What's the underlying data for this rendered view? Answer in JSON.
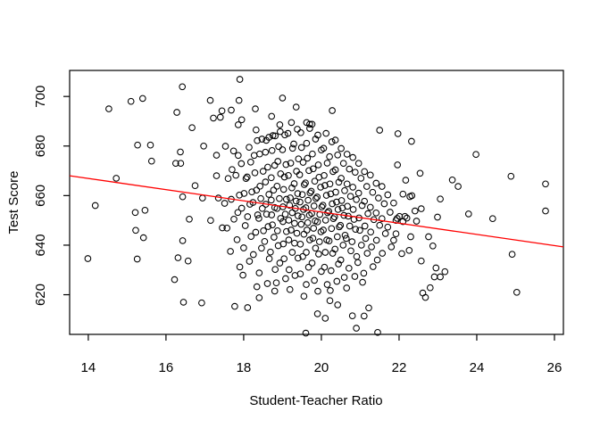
{
  "chart_data": {
    "type": "scatter",
    "title": "",
    "xlabel": "Student-Teacher Ratio",
    "ylabel": "Test Score",
    "xticks": [
      14,
      16,
      18,
      20,
      22,
      24,
      26
    ],
    "yticks": [
      620,
      640,
      660,
      680,
      700
    ],
    "xlim": [
      13.52,
      26.23
    ],
    "ylim": [
      604.0,
      710.5
    ],
    "grid": false,
    "marker": {
      "shape": "open-circle",
      "color": "#000000"
    },
    "regression_line": {
      "color": "#ff0000",
      "x1": 13.52,
      "y1": 668.0,
      "x2": 26.23,
      "y2": 639.3,
      "slope": -2.28,
      "intercept": 698.9
    },
    "points": [
      [
        13.99,
        634.6
      ],
      [
        14.18,
        656.0
      ],
      [
        14.53,
        695.0
      ],
      [
        14.72,
        667.0
      ],
      [
        15.1,
        698.0
      ],
      [
        15.4,
        699.2
      ],
      [
        15.21,
        653.2
      ],
      [
        15.46,
        654.1
      ],
      [
        15.22,
        646.0
      ],
      [
        15.42,
        643.0
      ],
      [
        15.26,
        634.4
      ],
      [
        15.27,
        680.4
      ],
      [
        15.6,
        680.4
      ],
      [
        15.63,
        673.9
      ],
      [
        16.42,
        703.9
      ],
      [
        16.28,
        693.6
      ],
      [
        16.25,
        673.0
      ],
      [
        16.38,
        673.0
      ],
      [
        16.37,
        677.6
      ],
      [
        16.97,
        680.0
      ],
      [
        16.67,
        687.4
      ],
      [
        16.43,
        659.5
      ],
      [
        16.94,
        659.0
      ],
      [
        16.31,
        634.9
      ],
      [
        16.57,
        633.6
      ],
      [
        16.22,
        626.1
      ],
      [
        16.43,
        641.8
      ],
      [
        16.45,
        617.0
      ],
      [
        16.92,
        616.7
      ],
      [
        17.14,
        698.4
      ],
      [
        17.3,
        676.3
      ],
      [
        17.22,
        691.3
      ],
      [
        17.4,
        691.6
      ],
      [
        17.44,
        694.2
      ],
      [
        16.75,
        664.0
      ],
      [
        16.6,
        650.5
      ],
      [
        17.15,
        650.0
      ],
      [
        17.35,
        659.0
      ],
      [
        17.45,
        647.0
      ],
      [
        17.3,
        668.0
      ],
      [
        17.68,
        694.5
      ],
      [
        17.9,
        706.9
      ],
      [
        17.88,
        698.4
      ],
      [
        17.95,
        690.6
      ],
      [
        17.86,
        688.6
      ],
      [
        18.3,
        695.0
      ],
      [
        18.93,
        688.6
      ],
      [
        18.32,
        686.5
      ],
      [
        18.81,
        684.1
      ],
      [
        18.58,
        682.3
      ],
      [
        18.72,
        692.0
      ],
      [
        19.0,
        699.4
      ],
      [
        19.35,
        695.7
      ],
      [
        19.7,
        688.8
      ],
      [
        20.28,
        694.3
      ],
      [
        19.62,
        689.5
      ],
      [
        21.5,
        686.4
      ],
      [
        21.97,
        685.0
      ],
      [
        19.23,
        689.5
      ],
      [
        17.77,
        615.3
      ],
      [
        18.1,
        614.8
      ],
      [
        18.4,
        618.8
      ],
      [
        18.8,
        621.5
      ],
      [
        19.6,
        604.5
      ],
      [
        21.45,
        604.8
      ],
      [
        20.9,
        606.5
      ],
      [
        20.1,
        610.5
      ],
      [
        19.9,
        612.3
      ],
      [
        20.42,
        615.9
      ],
      [
        20.22,
        617.6
      ],
      [
        20.8,
        611.5
      ],
      [
        21.1,
        611.4
      ],
      [
        21.22,
        614.7
      ],
      [
        22.32,
        681.9
      ],
      [
        23.98,
        676.6
      ],
      [
        21.96,
        672.4
      ],
      [
        22.17,
        666.2
      ],
      [
        22.54,
        669.0
      ],
      [
        23.37,
        666.3
      ],
      [
        23.52,
        663.7
      ],
      [
        24.88,
        667.8
      ],
      [
        25.77,
        664.7
      ],
      [
        25.77,
        653.8
      ],
      [
        22.28,
        659.6
      ],
      [
        22.33,
        660.0
      ],
      [
        23.06,
        658.6
      ],
      [
        22.41,
        653.8
      ],
      [
        22.57,
        654.7
      ],
      [
        22.99,
        651.3
      ],
      [
        23.79,
        652.6
      ],
      [
        24.41,
        650.7
      ],
      [
        22.1,
        649.5
      ],
      [
        22.2,
        650.9
      ],
      [
        22.45,
        649.7
      ],
      [
        21.95,
        650.8
      ],
      [
        22.15,
        651.6
      ],
      [
        21.92,
        644.6
      ],
      [
        22.3,
        643.4
      ],
      [
        22.76,
        643.4
      ],
      [
        22.87,
        639.7
      ],
      [
        22.26,
        637.9
      ],
      [
        24.91,
        636.3
      ],
      [
        22.57,
        633.6
      ],
      [
        23.18,
        629.3
      ],
      [
        22.95,
        630.8
      ],
      [
        22.91,
        627.2
      ],
      [
        23.06,
        627.2
      ],
      [
        22.61,
        620.7
      ],
      [
        22.8,
        622.8
      ],
      [
        22.68,
        618.9
      ],
      [
        25.03,
        621.0
      ],
      [
        17.57,
        646.9
      ],
      [
        17.51,
        656.9
      ],
      [
        17.6,
        666.9
      ],
      [
        17.53,
        679.9
      ],
      [
        17.66,
        637.5
      ],
      [
        17.75,
        650.5
      ],
      [
        17.68,
        658.5
      ],
      [
        17.7,
        670.5
      ],
      [
        17.74,
        678.0
      ],
      [
        17.9,
        631.2
      ],
      [
        17.83,
        642.2
      ],
      [
        17.85,
        653.2
      ],
      [
        17.89,
        660.2
      ],
      [
        17.8,
        668.2
      ],
      [
        17.86,
        676.2
      ],
      [
        17.98,
        627.9
      ],
      [
        18.0,
        638.9
      ],
      [
        18.04,
        647.9
      ],
      [
        17.95,
        654.9
      ],
      [
        18.01,
        660.9
      ],
      [
        18.06,
        666.9
      ],
      [
        17.94,
        672.9
      ],
      [
        18.15,
        633.5
      ],
      [
        18.19,
        643.5
      ],
      [
        18.1,
        651.5
      ],
      [
        18.16,
        656.5
      ],
      [
        18.21,
        661.5
      ],
      [
        18.09,
        667.5
      ],
      [
        18.18,
        673.5
      ],
      [
        18.14,
        679.5
      ],
      [
        18.34,
        623.2
      ],
      [
        18.25,
        636.2
      ],
      [
        18.31,
        645.2
      ],
      [
        18.36,
        652.2
      ],
      [
        18.24,
        657.2
      ],
      [
        18.33,
        662.2
      ],
      [
        18.29,
        669.2
      ],
      [
        18.27,
        676.2
      ],
      [
        18.35,
        682.2
      ],
      [
        18.4,
        628.8
      ],
      [
        18.46,
        638.8
      ],
      [
        18.51,
        645.8
      ],
      [
        18.39,
        650.8
      ],
      [
        18.48,
        654.8
      ],
      [
        18.44,
        658.8
      ],
      [
        18.42,
        663.8
      ],
      [
        18.5,
        669.8
      ],
      [
        18.41,
        676.8
      ],
      [
        18.47,
        682.8
      ],
      [
        18.61,
        624.5
      ],
      [
        18.66,
        634.5
      ],
      [
        18.54,
        641.5
      ],
      [
        18.63,
        647.5
      ],
      [
        18.59,
        652.5
      ],
      [
        18.57,
        656.5
      ],
      [
        18.65,
        660.5
      ],
      [
        18.56,
        665.5
      ],
      [
        18.62,
        671.5
      ],
      [
        18.56,
        677.5
      ],
      [
        18.65,
        683.5
      ],
      [
        18.81,
        630.2
      ],
      [
        18.69,
        637.2
      ],
      [
        18.78,
        643.2
      ],
      [
        18.74,
        648.2
      ],
      [
        18.72,
        652.2
      ],
      [
        18.8,
        655.2
      ],
      [
        18.71,
        658.2
      ],
      [
        18.77,
        662.2
      ],
      [
        18.71,
        667.2
      ],
      [
        18.8,
        672.2
      ],
      [
        18.73,
        678.2
      ],
      [
        18.75,
        684.2
      ],
      [
        18.84,
        624.8
      ],
      [
        18.93,
        632.8
      ],
      [
        18.89,
        639.8
      ],
      [
        18.87,
        645.8
      ],
      [
        18.95,
        650.8
      ],
      [
        18.86,
        654.8
      ],
      [
        18.92,
        658.8
      ],
      [
        18.86,
        663.8
      ],
      [
        18.95,
        668.8
      ],
      [
        18.88,
        673.8
      ],
      [
        18.9,
        679.8
      ],
      [
        18.94,
        685.8
      ],
      [
        19.08,
        626.5
      ],
      [
        19.04,
        634.5
      ],
      [
        19.02,
        640.5
      ],
      [
        19.1,
        645.5
      ],
      [
        19.01,
        649.5
      ],
      [
        19.07,
        652.5
      ],
      [
        19.01,
        655.5
      ],
      [
        19.1,
        658.5
      ],
      [
        19.03,
        662.5
      ],
      [
        19.05,
        667.5
      ],
      [
        19.09,
        672.5
      ],
      [
        19.0,
        678.5
      ],
      [
        19.06,
        684.5
      ],
      [
        19.19,
        622.1
      ],
      [
        19.17,
        630.1
      ],
      [
        19.25,
        637.1
      ],
      [
        19.16,
        642.1
      ],
      [
        19.22,
        646.1
      ],
      [
        19.16,
        650.1
      ],
      [
        19.25,
        653.1
      ],
      [
        19.18,
        656.1
      ],
      [
        19.2,
        659.1
      ],
      [
        19.24,
        663.1
      ],
      [
        19.15,
        668.1
      ],
      [
        19.21,
        673.1
      ],
      [
        19.26,
        679.1
      ],
      [
        19.14,
        685.1
      ],
      [
        19.32,
        627.8
      ],
      [
        19.4,
        634.8
      ],
      [
        19.31,
        640.8
      ],
      [
        19.37,
        644.8
      ],
      [
        19.31,
        648.8
      ],
      [
        19.4,
        651.8
      ],
      [
        19.33,
        654.8
      ],
      [
        19.35,
        657.8
      ],
      [
        19.39,
        660.8
      ],
      [
        19.3,
        664.8
      ],
      [
        19.36,
        669.8
      ],
      [
        19.41,
        674.8
      ],
      [
        19.29,
        680.8
      ],
      [
        19.38,
        686.8
      ],
      [
        19.55,
        619.4
      ],
      [
        19.46,
        628.4
      ],
      [
        19.52,
        635.4
      ],
      [
        19.46,
        640.4
      ],
      [
        19.55,
        644.4
      ],
      [
        19.48,
        648.4
      ],
      [
        19.5,
        651.4
      ],
      [
        19.54,
        654.4
      ],
      [
        19.45,
        657.4
      ],
      [
        19.51,
        660.4
      ],
      [
        19.56,
        664.4
      ],
      [
        19.44,
        668.4
      ],
      [
        19.53,
        673.4
      ],
      [
        19.49,
        679.4
      ],
      [
        19.47,
        685.4
      ],
      [
        19.61,
        624.1
      ],
      [
        19.67,
        631.1
      ],
      [
        19.61,
        637.1
      ],
      [
        19.7,
        642.1
      ],
      [
        19.63,
        646.1
      ],
      [
        19.65,
        649.1
      ],
      [
        19.69,
        652.1
      ],
      [
        19.6,
        655.1
      ],
      [
        19.66,
        658.1
      ],
      [
        19.71,
        661.1
      ],
      [
        19.59,
        665.1
      ],
      [
        19.68,
        670.1
      ],
      [
        19.64,
        675.1
      ],
      [
        19.62,
        681.1
      ],
      [
        19.7,
        687.1
      ],
      [
        19.82,
        625.8
      ],
      [
        19.76,
        632.8
      ],
      [
        19.85,
        638.8
      ],
      [
        19.78,
        642.8
      ],
      [
        19.8,
        646.8
      ],
      [
        19.84,
        649.8
      ],
      [
        19.75,
        652.8
      ],
      [
        19.81,
        655.8
      ],
      [
        19.86,
        658.8
      ],
      [
        19.74,
        661.8
      ],
      [
        19.83,
        665.8
      ],
      [
        19.79,
        670.8
      ],
      [
        19.77,
        676.8
      ],
      [
        19.85,
        682.8
      ],
      [
        19.76,
        688.8
      ],
      [
        19.91,
        621.4
      ],
      [
        20.0,
        629.4
      ],
      [
        19.93,
        636.4
      ],
      [
        19.95,
        641.4
      ],
      [
        19.99,
        645.4
      ],
      [
        19.9,
        649.4
      ],
      [
        19.96,
        652.4
      ],
      [
        20.01,
        655.4
      ],
      [
        19.89,
        659.4
      ],
      [
        19.98,
        663.4
      ],
      [
        19.94,
        667.4
      ],
      [
        19.92,
        672.4
      ],
      [
        20.0,
        678.4
      ],
      [
        19.91,
        684.4
      ],
      [
        20.15,
        624.1
      ],
      [
        20.08,
        631.1
      ],
      [
        20.1,
        637.1
      ],
      [
        20.14,
        642.1
      ],
      [
        20.05,
        646.1
      ],
      [
        20.11,
        650.1
      ],
      [
        20.16,
        653.1
      ],
      [
        20.04,
        656.1
      ],
      [
        20.13,
        660.1
      ],
      [
        20.09,
        664.1
      ],
      [
        20.07,
        668.1
      ],
      [
        20.15,
        673.1
      ],
      [
        20.06,
        679.1
      ],
      [
        20.12,
        685.1
      ],
      [
        20.23,
        621.7
      ],
      [
        20.25,
        629.7
      ],
      [
        20.29,
        636.7
      ],
      [
        20.2,
        641.7
      ],
      [
        20.26,
        646.7
      ],
      [
        20.31,
        650.7
      ],
      [
        20.19,
        653.7
      ],
      [
        20.28,
        656.7
      ],
      [
        20.24,
        660.7
      ],
      [
        20.22,
        664.7
      ],
      [
        20.3,
        669.7
      ],
      [
        20.21,
        675.7
      ],
      [
        20.27,
        681.7
      ],
      [
        20.4,
        625.4
      ],
      [
        20.44,
        632.4
      ],
      [
        20.35,
        638.4
      ],
      [
        20.41,
        643.4
      ],
      [
        20.46,
        647.4
      ],
      [
        20.34,
        651.4
      ],
      [
        20.43,
        654.4
      ],
      [
        20.39,
        657.4
      ],
      [
        20.37,
        661.4
      ],
      [
        20.45,
        665.4
      ],
      [
        20.36,
        670.4
      ],
      [
        20.42,
        676.4
      ],
      [
        20.36,
        682.4
      ],
      [
        20.59,
        627.0
      ],
      [
        20.5,
        634.0
      ],
      [
        20.56,
        640.0
      ],
      [
        20.61,
        644.0
      ],
      [
        20.49,
        648.0
      ],
      [
        20.58,
        652.0
      ],
      [
        20.54,
        655.0
      ],
      [
        20.52,
        658.0
      ],
      [
        20.6,
        662.0
      ],
      [
        20.51,
        667.0
      ],
      [
        20.57,
        673.0
      ],
      [
        20.51,
        679.0
      ],
      [
        20.65,
        622.7
      ],
      [
        20.71,
        630.7
      ],
      [
        20.76,
        637.7
      ],
      [
        20.64,
        642.7
      ],
      [
        20.73,
        647.7
      ],
      [
        20.69,
        651.7
      ],
      [
        20.67,
        655.7
      ],
      [
        20.75,
        659.7
      ],
      [
        20.66,
        664.7
      ],
      [
        20.72,
        670.7
      ],
      [
        20.66,
        676.7
      ],
      [
        20.86,
        627.4
      ],
      [
        20.91,
        635.4
      ],
      [
        20.79,
        641.4
      ],
      [
        20.88,
        646.4
      ],
      [
        20.84,
        650.4
      ],
      [
        20.82,
        654.4
      ],
      [
        20.9,
        658.4
      ],
      [
        20.81,
        663.4
      ],
      [
        20.87,
        669.4
      ],
      [
        20.81,
        675.4
      ],
      [
        21.06,
        625.0
      ],
      [
        20.94,
        633.0
      ],
      [
        21.03,
        640.0
      ],
      [
        20.99,
        646.0
      ],
      [
        20.97,
        651.0
      ],
      [
        21.05,
        656.0
      ],
      [
        20.96,
        661.0
      ],
      [
        21.02,
        667.0
      ],
      [
        20.96,
        673.0
      ],
      [
        21.09,
        628.7
      ],
      [
        21.18,
        636.7
      ],
      [
        21.14,
        642.7
      ],
      [
        21.12,
        647.7
      ],
      [
        21.2,
        652.7
      ],
      [
        21.11,
        657.7
      ],
      [
        21.17,
        663.7
      ],
      [
        21.11,
        669.7
      ],
      [
        21.33,
        631.3
      ],
      [
        21.29,
        639.3
      ],
      [
        21.27,
        645.3
      ],
      [
        21.35,
        650.3
      ],
      [
        21.26,
        655.3
      ],
      [
        21.32,
        661.3
      ],
      [
        21.26,
        668.3
      ],
      [
        21.44,
        634.0
      ],
      [
        21.42,
        642.0
      ],
      [
        21.5,
        648.0
      ],
      [
        21.41,
        653.0
      ],
      [
        21.47,
        659.0
      ],
      [
        21.41,
        665.0
      ],
      [
        21.57,
        636.7
      ],
      [
        21.65,
        644.7
      ],
      [
        21.56,
        650.7
      ],
      [
        21.62,
        656.7
      ],
      [
        21.56,
        663.7
      ],
      [
        21.8,
        639.3
      ],
      [
        21.71,
        647.3
      ],
      [
        21.77,
        653.3
      ],
      [
        21.71,
        660.3
      ],
      [
        21.86,
        642.0
      ],
      [
        21.92,
        650.0
      ],
      [
        21.86,
        657.0
      ],
      [
        22.07,
        636.6
      ],
      [
        22.01,
        651.6
      ],
      [
        22.1,
        660.6
      ]
    ]
  }
}
